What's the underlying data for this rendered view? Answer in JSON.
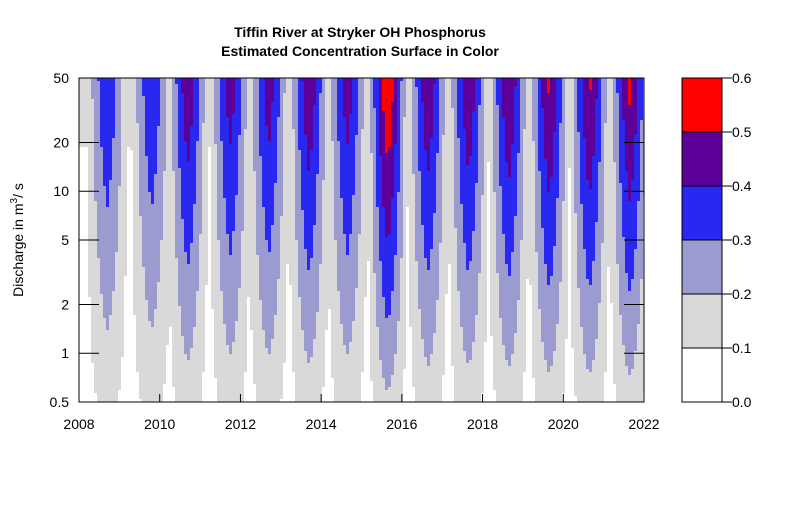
{
  "chart_data": {
    "type": "heatmap",
    "title": "Tiffin River at Stryker OH   Phosphorus",
    "subtitle": "Estimated Concentration Surface in Color",
    "xlabel": "",
    "ylabel": "Discharge in m3 / s",
    "ylabel_main": "Discharge in m",
    "ylabel_sup": "3",
    "ylabel_rest": "/ s",
    "x_range": [
      2008,
      2022
    ],
    "x_ticks": [
      "2008",
      "2010",
      "2012",
      "2014",
      "2016",
      "2018",
      "2020",
      "2022"
    ],
    "y_scale": "log",
    "y_range": [
      0.5,
      50
    ],
    "y_ticks": [
      "0.5",
      "1",
      "2",
      "5",
      "10",
      "20",
      "50"
    ],
    "color_levels": [
      {
        "from": 0.0,
        "to": 0.1,
        "color": "#FFFFFF"
      },
      {
        "from": 0.1,
        "to": 0.2,
        "color": "#D9D9D9"
      },
      {
        "from": 0.2,
        "to": 0.3,
        "color": "#9B9BCF"
      },
      {
        "from": 0.3,
        "to": 0.4,
        "color": "#2828F0"
      },
      {
        "from": 0.4,
        "to": 0.5,
        "color": "#5C0099"
      },
      {
        "from": 0.5,
        "to": 0.6,
        "color": "#FF0000"
      }
    ],
    "legend_ticks": [
      "0.0",
      "0.1",
      "0.2",
      "0.3",
      "0.4",
      "0.5",
      "0.6"
    ],
    "legend_placement": "right",
    "surface_peak_years": [
      2008.7,
      2009.8,
      2010.7,
      2011.75,
      2012.7,
      2013.7,
      2014.65,
      2015.65,
      2016.65,
      2017.65,
      2018.65,
      2019.65,
      2020.65,
      2021.65
    ],
    "surface_peak_levels": [
      0.36,
      0.36,
      0.44,
      0.42,
      0.42,
      0.45,
      0.42,
      0.56,
      0.45,
      0.45,
      0.46,
      0.48,
      0.48,
      0.49
    ]
  }
}
